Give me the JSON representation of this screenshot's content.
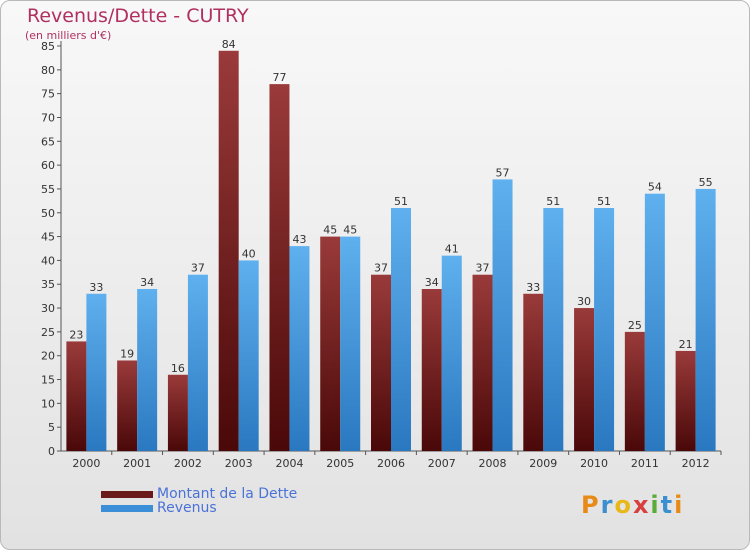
{
  "header": {
    "title": "Revenus/Dette - CUTRY",
    "subtitle": "(en milliers d'€)"
  },
  "logo": {
    "text": "Proxiti",
    "letters": [
      "P",
      "r",
      "o",
      "x",
      "i",
      "t",
      "i"
    ],
    "letter_colors": [
      "#e88a18",
      "#3a8fd0",
      "#e8b818",
      "#d84040",
      "#5aab3a",
      "#3a8fd0",
      "#e88a18"
    ]
  },
  "colors": {
    "dette": "#6b1a1a",
    "revenus": "#3b8fd8",
    "title": "#b03060",
    "legend_text": "#4a72d8"
  },
  "chart_data": {
    "type": "bar",
    "title": "Revenus/Dette - CUTRY",
    "ylabel": "(en milliers d'€)",
    "xlabel": "",
    "ylim": [
      0,
      85
    ],
    "yticks": [
      0,
      5,
      10,
      15,
      20,
      25,
      30,
      35,
      40,
      45,
      50,
      55,
      60,
      65,
      70,
      75,
      80,
      85
    ],
    "grid": false,
    "legend_position": "bottom-left",
    "categories": [
      "2000",
      "2001",
      "2002",
      "2003",
      "2004",
      "2005",
      "2006",
      "2007",
      "2008",
      "2009",
      "2010",
      "2011",
      "2012"
    ],
    "series": [
      {
        "name": "Montant de la Dette",
        "color": "#6b1a1a",
        "values": [
          23,
          19,
          16,
          84,
          77,
          45,
          37,
          34,
          37,
          33,
          30,
          25,
          21
        ]
      },
      {
        "name": "Revenus",
        "color": "#3b8fd8",
        "values": [
          33,
          34,
          37,
          40,
          43,
          45,
          51,
          41,
          57,
          51,
          51,
          54,
          55
        ]
      }
    ]
  }
}
